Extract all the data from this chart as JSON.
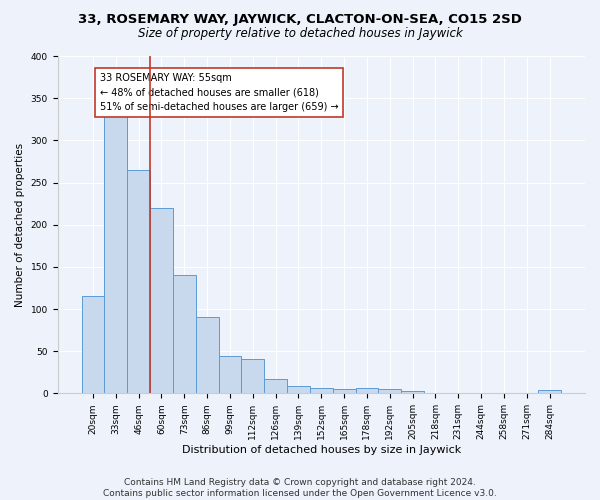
{
  "title": "33, ROSEMARY WAY, JAYWICK, CLACTON-ON-SEA, CO15 2SD",
  "subtitle": "Size of property relative to detached houses in Jaywick",
  "xlabel": "Distribution of detached houses by size in Jaywick",
  "ylabel": "Number of detached properties",
  "categories": [
    "20sqm",
    "33sqm",
    "46sqm",
    "60sqm",
    "73sqm",
    "86sqm",
    "99sqm",
    "112sqm",
    "126sqm",
    "139sqm",
    "152sqm",
    "165sqm",
    "178sqm",
    "192sqm",
    "205sqm",
    "218sqm",
    "231sqm",
    "244sqm",
    "258sqm",
    "271sqm",
    "284sqm"
  ],
  "values": [
    115,
    330,
    265,
    220,
    140,
    90,
    44,
    41,
    17,
    9,
    6,
    5,
    6,
    5,
    3,
    0,
    0,
    0,
    0,
    0,
    4
  ],
  "bar_color": "#c8d9ee",
  "bar_edge_color": "#5b9bd5",
  "vline_x": 2.5,
  "vline_color": "#c0392b",
  "annotation_text": "33 ROSEMARY WAY: 55sqm\n← 48% of detached houses are smaller (618)\n51% of semi-detached houses are larger (659) →",
  "annotation_box_color": "#ffffff",
  "annotation_box_edge_color": "#c0392b",
  "ylim": [
    0,
    400
  ],
  "yticks": [
    0,
    50,
    100,
    150,
    200,
    250,
    300,
    350,
    400
  ],
  "footer": "Contains HM Land Registry data © Crown copyright and database right 2024.\nContains public sector information licensed under the Open Government Licence v3.0.",
  "background_color": "#edf2fb",
  "title_fontsize": 9.5,
  "subtitle_fontsize": 8.5,
  "xlabel_fontsize": 8,
  "ylabel_fontsize": 7.5,
  "tick_fontsize": 6.5,
  "annotation_fontsize": 7,
  "footer_fontsize": 6.5
}
